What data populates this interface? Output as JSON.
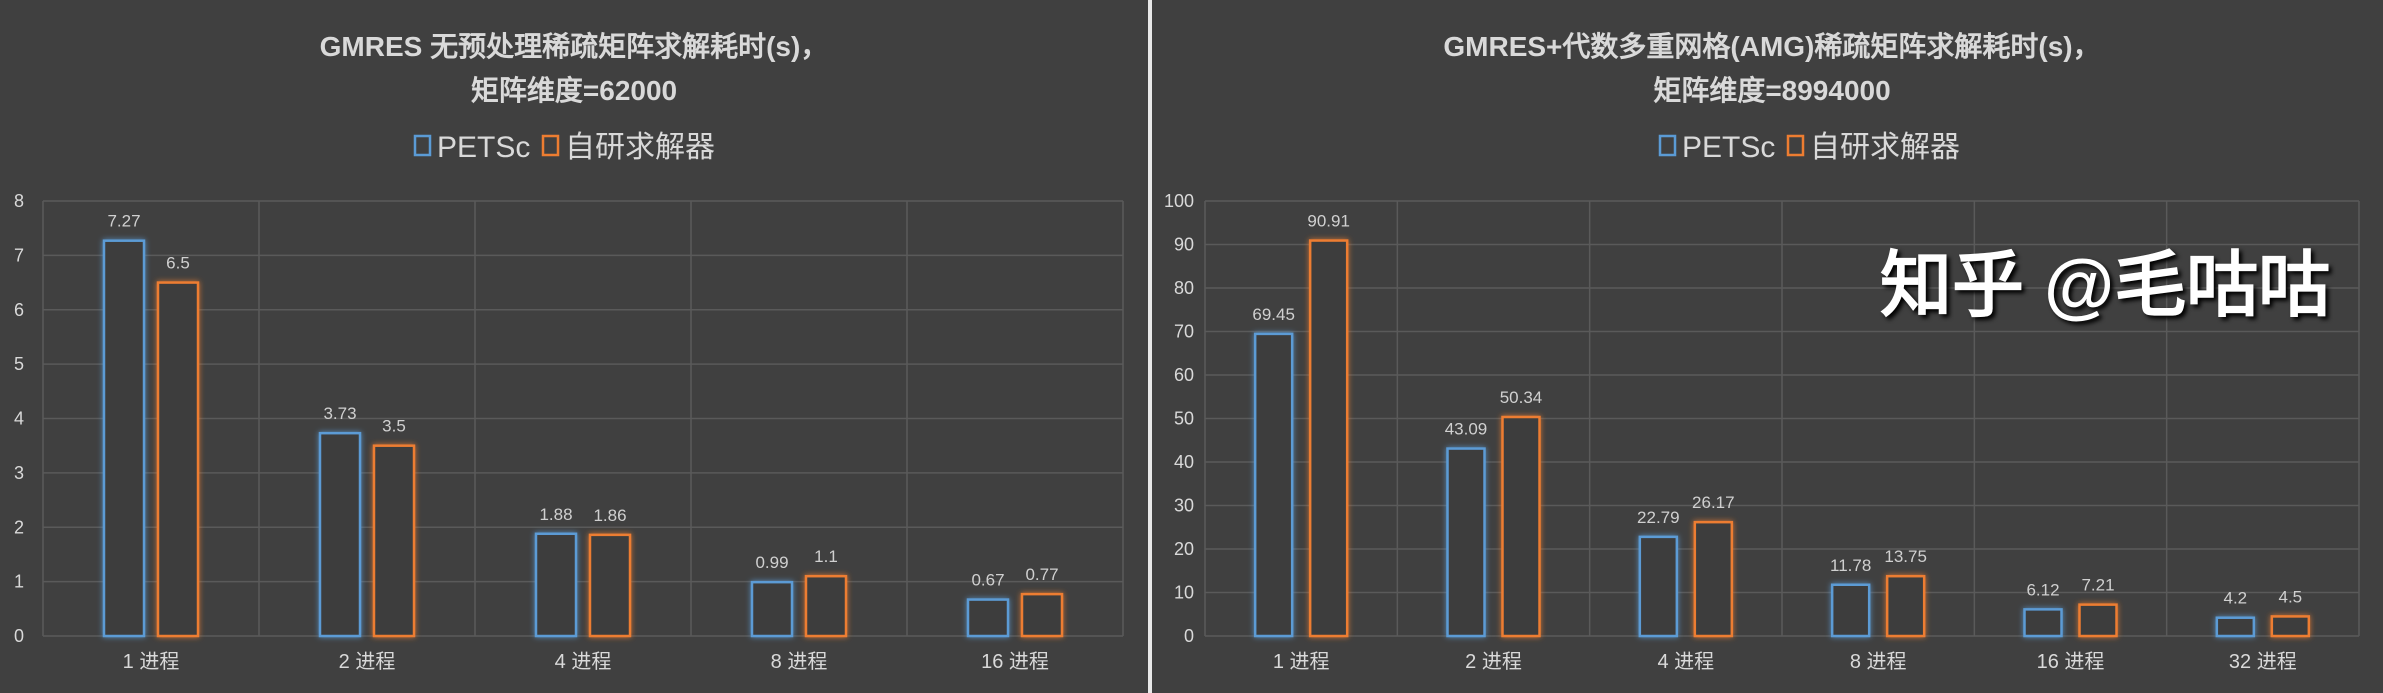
{
  "colors": {
    "petsc": "#5B9BD5",
    "own": "#ED7D31",
    "background": "#404040"
  },
  "watermark": "知乎 @毛咕咕",
  "chart_data": [
    {
      "type": "bar",
      "title": [
        "GMRES 无预处理稀疏矩阵求解耗时(s)，",
        "矩阵维度=62000"
      ],
      "legend": [
        "PETSc",
        "自研求解器"
      ],
      "legend_position": "top",
      "categories": [
        "1 进程",
        "2 进程",
        "4 进程",
        "8 进程",
        "16 进程"
      ],
      "series": [
        {
          "name": "PETSc",
          "values": [
            7.27,
            3.73,
            1.88,
            0.99,
            0.67
          ],
          "labels": [
            "7.27",
            "3.73",
            "1.88",
            "0.99",
            "0.67"
          ]
        },
        {
          "name": "自研求解器",
          "values": [
            6.5,
            3.5,
            1.86,
            1.1,
            0.77
          ],
          "labels": [
            "6.5",
            "3.5",
            "1.86",
            "1.1",
            "0.77"
          ]
        }
      ],
      "ylim": [
        0,
        8
      ],
      "yticks": [
        "0",
        "1",
        "2",
        "3",
        "4",
        "5",
        "6",
        "7",
        "8"
      ],
      "grid": true
    },
    {
      "type": "bar",
      "title": [
        "GMRES+代数多重网格(AMG)稀疏矩阵求解耗时(s)，",
        "矩阵维度=8994000"
      ],
      "legend": [
        "PETSc",
        "自研求解器"
      ],
      "legend_position": "top",
      "categories": [
        "1 进程",
        "2 进程",
        "4 进程",
        "8 进程",
        "16 进程",
        "32 进程"
      ],
      "series": [
        {
          "name": "PETSc",
          "values": [
            69.45,
            43.09,
            22.79,
            11.78,
            6.12,
            4.2
          ],
          "labels": [
            "69.45",
            "43.09",
            "22.79",
            "11.78",
            "6.12",
            "4.2"
          ]
        },
        {
          "name": "自研求解器",
          "values": [
            90.91,
            50.34,
            26.17,
            13.75,
            7.21,
            4.5
          ],
          "labels": [
            "90.91",
            "50.34",
            "26.17",
            "13.75",
            "7.21",
            "4.5"
          ]
        }
      ],
      "ylim": [
        0,
        100
      ],
      "yticks": [
        "0",
        "10",
        "20",
        "30",
        "40",
        "50",
        "60",
        "70",
        "80",
        "90",
        "100"
      ],
      "grid": true
    }
  ]
}
